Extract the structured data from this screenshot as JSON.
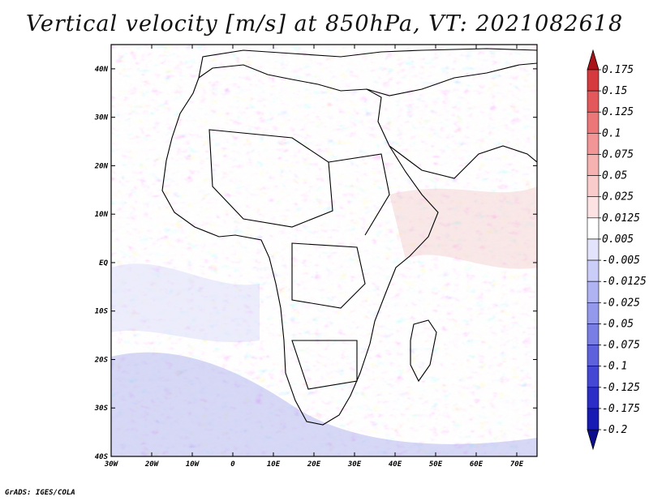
{
  "title": "Vertical velocity [m/s] at 850hPa, VT: 2021082618",
  "credit": "GrADS: IGES/COLA",
  "map": {
    "lat_labels": [
      "40N",
      "30N",
      "20N",
      "10N",
      "EQ",
      "10S",
      "20S",
      "30S",
      "40S"
    ],
    "lon_labels": [
      "30W",
      "20W",
      "10W",
      "0",
      "10E",
      "20E",
      "30E",
      "40E",
      "50E",
      "60E",
      "70E"
    ],
    "lon_range": [
      -30,
      75
    ],
    "lat_range": [
      -40,
      45
    ]
  },
  "colorbar": {
    "levels": [
      "0.175",
      "0.15",
      "0.125",
      "0.1",
      "0.075",
      "0.05",
      "0.025",
      "0.0125",
      "0.005",
      "-0.005",
      "-0.0125",
      "-0.025",
      "-0.05",
      "-0.075",
      "-0.1",
      "-0.125",
      "-0.175",
      "-0.2"
    ],
    "colors": [
      "#c0282c",
      "#d53a3e",
      "#e2585b",
      "#ec7779",
      "#f29596",
      "#f6b1b1",
      "#f9cbcb",
      "#fce2e2",
      "#ffffff",
      "#e3e4fb",
      "#cacdf7",
      "#b0b3f2",
      "#9599ec",
      "#797ee4",
      "#5d62dc",
      "#4347d3",
      "#2b2dc6",
      "#181ab4"
    ],
    "top_arrow_color": "#a8141a",
    "bottom_arrow_color": "#0d0e8e"
  }
}
